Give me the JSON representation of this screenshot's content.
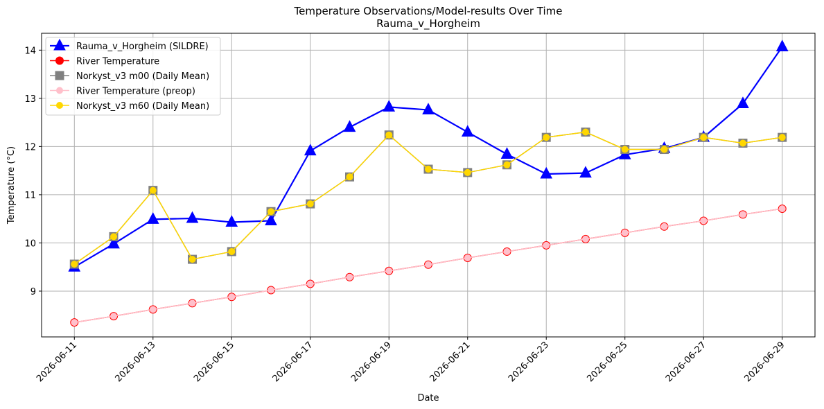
{
  "chart_data": {
    "type": "line",
    "title": "Temperature Observations/Model-results Over Time",
    "subtitle": "Rauma_v_Horgheim",
    "xlabel": "Date",
    "ylabel": "Temperature (°C)",
    "x": [
      "2026-06-11",
      "2026-06-12",
      "2026-06-13",
      "2026-06-14",
      "2026-06-15",
      "2026-06-16",
      "2026-06-17",
      "2026-06-18",
      "2026-06-19",
      "2026-06-20",
      "2026-06-21",
      "2026-06-22",
      "2026-06-23",
      "2026-06-24",
      "2026-06-25",
      "2026-06-26",
      "2026-06-27",
      "2026-06-28",
      "2026-06-29"
    ],
    "x_ticks": [
      "2026-06-11",
      "2026-06-13",
      "2026-06-15",
      "2026-06-17",
      "2026-06-19",
      "2026-06-21",
      "2026-06-23",
      "2026-06-25",
      "2026-06-27",
      "2026-06-29"
    ],
    "xlim": [
      "2026-06-10T04:00",
      "2026-06-29T20:00"
    ],
    "ylim": [
      8.05,
      14.35
    ],
    "y_ticks": [
      9,
      10,
      11,
      12,
      13,
      14
    ],
    "grid": true,
    "legend_position": "top-left",
    "series": [
      {
        "name": "Rauma_v_Horgheim (SILDRE)",
        "color": "#0000ff",
        "marker": "triangle",
        "values": [
          9.5,
          9.98,
          10.49,
          10.51,
          10.43,
          10.46,
          11.91,
          12.4,
          12.82,
          12.76,
          12.3,
          11.84,
          11.43,
          11.45,
          11.83,
          11.96,
          12.19,
          12.89,
          14.07
        ]
      },
      {
        "name": "River Temperature",
        "color": "#ff0000",
        "marker": "circle",
        "values": [
          8.35,
          8.48,
          8.62,
          8.75,
          8.88,
          9.02,
          9.15,
          9.29,
          9.42,
          9.55,
          9.69,
          9.82,
          9.95,
          10.08,
          10.21,
          10.34,
          10.46,
          10.59,
          10.71
        ]
      },
      {
        "name": "Norkyst_v3 m00 (Daily Mean)",
        "color": "#808080",
        "marker": "square",
        "values": [
          9.56,
          10.13,
          11.09,
          9.66,
          9.82,
          10.65,
          10.81,
          11.37,
          12.24,
          11.53,
          11.46,
          11.62,
          12.19,
          12.3,
          11.94,
          11.94,
          12.19,
          12.07,
          12.19
        ]
      },
      {
        "name": "River Temperature (preop)",
        "color": "#ffc0cb",
        "marker": "small-circle",
        "values": [
          8.35,
          8.48,
          8.62,
          8.75,
          8.88,
          9.02,
          9.15,
          9.29,
          9.42,
          9.55,
          9.69,
          9.82,
          9.95,
          10.08,
          10.21,
          10.34,
          10.46,
          10.59,
          10.71
        ]
      },
      {
        "name": "Norkyst_v3 m60 (Daily Mean)",
        "color": "#ffd700",
        "marker": "small-circle",
        "values": [
          9.56,
          10.13,
          11.09,
          9.66,
          9.82,
          10.65,
          10.81,
          11.37,
          12.24,
          11.53,
          11.46,
          11.62,
          12.19,
          12.3,
          11.94,
          11.94,
          12.19,
          12.07,
          12.19
        ]
      }
    ]
  }
}
